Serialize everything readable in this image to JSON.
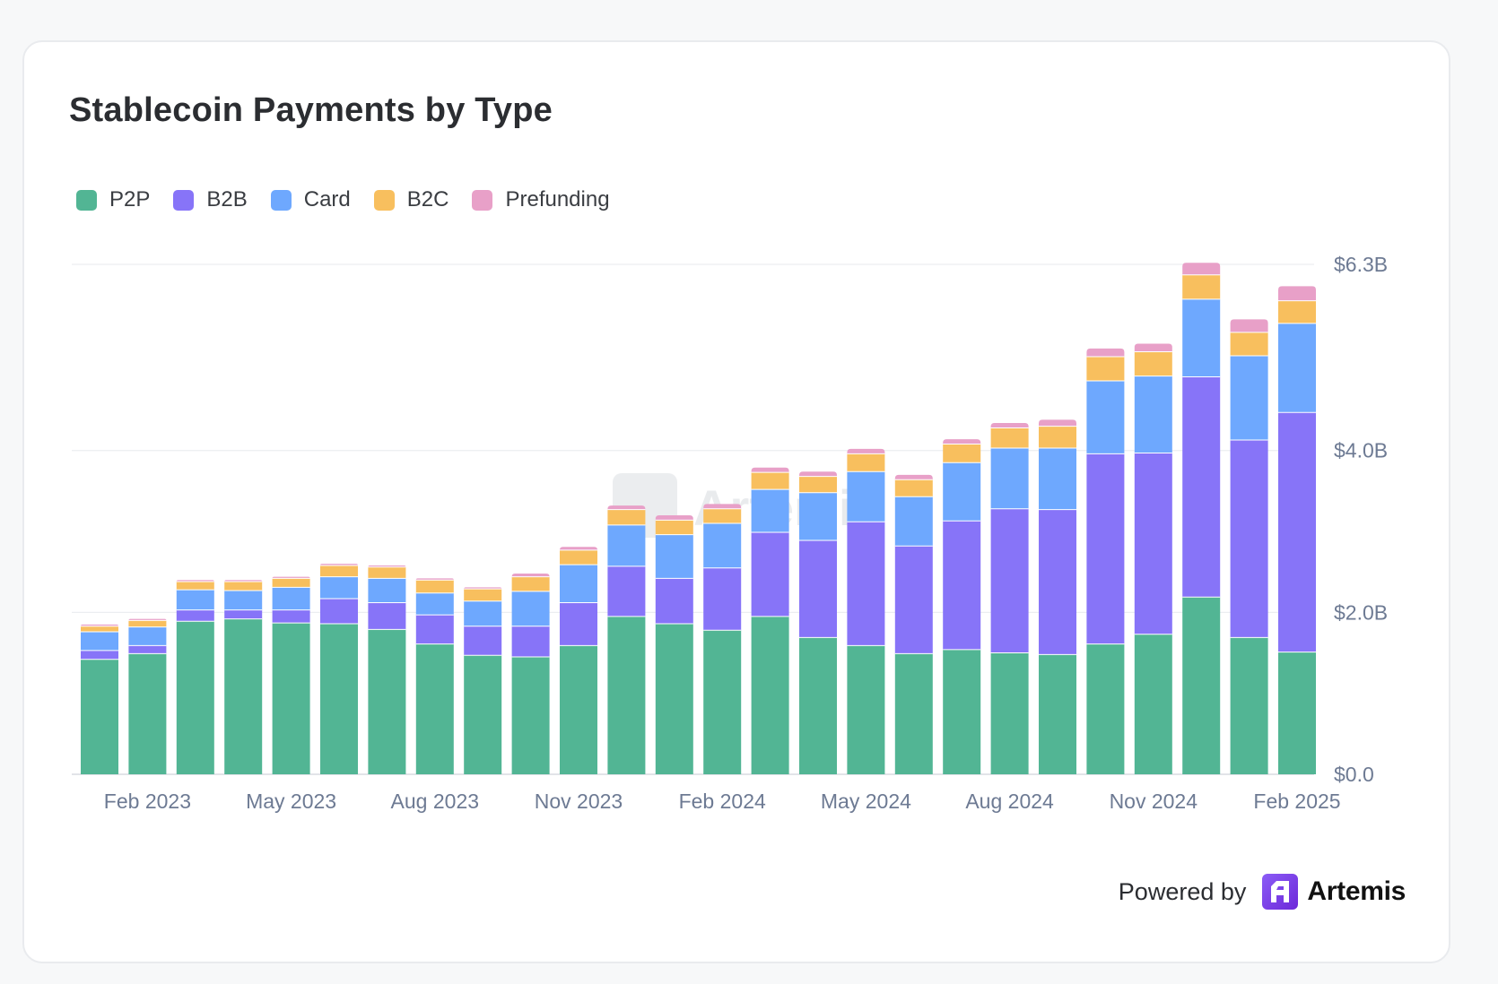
{
  "chart_data": {
    "type": "bar",
    "stacked": true,
    "title": "Stablecoin Payments by Type",
    "categories": [
      "Jan 2023",
      "Feb 2023",
      "Mar 2023",
      "Apr 2023",
      "May 2023",
      "Jun 2023",
      "Jul 2023",
      "Aug 2023",
      "Sep 2023",
      "Oct 2023",
      "Nov 2023",
      "Dec 2023",
      "Jan 2024",
      "Feb 2024",
      "Mar 2024",
      "Apr 2024",
      "May 2024",
      "Jun 2024",
      "Jul 2024",
      "Aug 2024",
      "Sep 2024",
      "Oct 2024",
      "Nov 2024",
      "Dec 2024",
      "Jan 2025",
      "Feb 2025"
    ],
    "x_tick_labels": [
      {
        "index": 1,
        "label": "Feb 2023"
      },
      {
        "index": 4,
        "label": "May 2023"
      },
      {
        "index": 7,
        "label": "Aug 2023"
      },
      {
        "index": 10,
        "label": "Nov 2023"
      },
      {
        "index": 13,
        "label": "Feb 2024"
      },
      {
        "index": 16,
        "label": "May 2024"
      },
      {
        "index": 19,
        "label": "Aug 2024"
      },
      {
        "index": 22,
        "label": "Nov 2024"
      },
      {
        "index": 25,
        "label": "Feb 2025"
      }
    ],
    "y_axis": {
      "ticks": [
        {
          "value": 0.0,
          "label": "$0.0"
        },
        {
          "value": 2.0,
          "label": "$2.0B"
        },
        {
          "value": 4.0,
          "label": "$4.0B"
        },
        {
          "value": 6.3,
          "label": "$6.3B"
        }
      ],
      "range": [
        0,
        6.3
      ],
      "position": "right",
      "unit": "USD billions"
    },
    "grid": true,
    "legend_position": "top-left",
    "series": [
      {
        "name": "P2P",
        "color": "#52b594",
        "values": [
          1.42,
          1.49,
          1.89,
          1.92,
          1.87,
          1.86,
          1.79,
          1.61,
          1.47,
          1.45,
          1.59,
          1.95,
          1.86,
          1.78,
          1.95,
          1.69,
          1.59,
          1.49,
          1.54,
          1.5,
          1.48,
          1.61,
          1.73,
          2.19,
          1.69,
          1.51
        ]
      },
      {
        "name": "B2B",
        "color": "#8774f8",
        "values": [
          0.11,
          0.1,
          0.14,
          0.11,
          0.16,
          0.31,
          0.33,
          0.36,
          0.36,
          0.38,
          0.53,
          0.62,
          0.56,
          0.77,
          1.04,
          1.2,
          1.53,
          1.33,
          1.59,
          1.78,
          1.79,
          2.35,
          2.24,
          2.72,
          2.44,
          2.96
        ]
      },
      {
        "name": "Card",
        "color": "#6ea8fe",
        "values": [
          0.23,
          0.23,
          0.25,
          0.24,
          0.28,
          0.27,
          0.3,
          0.27,
          0.31,
          0.43,
          0.47,
          0.51,
          0.54,
          0.55,
          0.53,
          0.59,
          0.62,
          0.61,
          0.72,
          0.75,
          0.76,
          0.9,
          0.95,
          0.96,
          1.04,
          1.1
        ]
      },
      {
        "name": "B2C",
        "color": "#f8bf5e",
        "values": [
          0.07,
          0.08,
          0.1,
          0.11,
          0.11,
          0.14,
          0.14,
          0.16,
          0.15,
          0.18,
          0.18,
          0.19,
          0.18,
          0.18,
          0.21,
          0.2,
          0.22,
          0.21,
          0.23,
          0.25,
          0.27,
          0.3,
          0.3,
          0.3,
          0.29,
          0.28
        ]
      },
      {
        "name": "Prefunding",
        "color": "#e8a0c8",
        "values": [
          0.02,
          0.02,
          0.02,
          0.02,
          0.02,
          0.02,
          0.02,
          0.02,
          0.02,
          0.04,
          0.04,
          0.05,
          0.06,
          0.06,
          0.06,
          0.06,
          0.06,
          0.06,
          0.06,
          0.06,
          0.08,
          0.1,
          0.1,
          0.15,
          0.16,
          0.18
        ]
      }
    ]
  },
  "watermark": "Artemis",
  "footer": {
    "powered_by": "Powered by",
    "brand": "Artemis"
  }
}
